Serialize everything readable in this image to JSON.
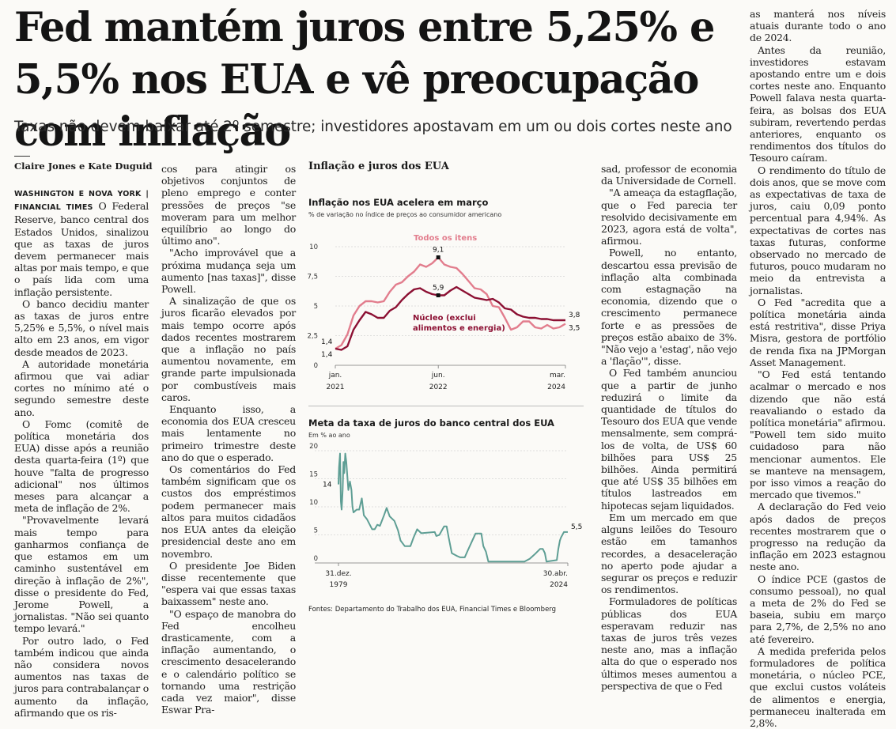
{
  "article": {
    "headline": "Fed mantém juros entre 5,25% e 5,5% nos EUA e vê preocupação com inflação",
    "subhead": "Taxas não devem baixar até 2º semestre; investidores apostavam em um ou dois cortes neste ano",
    "byline": "Claire Jones e Kate Duguid",
    "dateline": "WASHINGTON E NOVA YORK | FINANCIAL TIMES"
  },
  "col1": [
    "O Federal Reserve, banco central dos Estados Unidos, sinalizou que as taxas de juros devem permanecer mais altas por mais tempo, e que o país lida com uma inflação persistente.",
    "O banco decidiu manter as taxas de juros entre 5,25% e 5,5%, o nível mais alto em 23 anos, em vigor desde meados de 2023.",
    "A autoridade monetária afirmou que vai adiar cortes no mínimo até o segundo semestre deste ano.",
    "O Fomc (comitê de política monetária dos EUA) disse após a reunião desta quarta-feira (1º) que houve \"falta de progresso adicional\" nos últimos meses para alcançar a meta de inflação de 2%.",
    "\"Provavelmente levará mais tempo para ganharmos confiança de que estamos em um caminho sustentável em direção à inflação de 2%\", disse o presidente do Fed, Jerome Powell, a jornalistas. \"Não sei quanto tempo levará.\"",
    "Por outro lado, o Fed também indicou que ainda não considera novos aumentos nas taxas de juros para contrabalançar o aumento da inflação, afirmando que os ris-"
  ],
  "col2": [
    "cos para atingir os objetivos conjuntos de pleno emprego e conter pressões de preços \"se moveram para um melhor equilíbrio ao longo do último ano\".",
    "\"Acho improvável que a próxima mudança seja um aumento [nas taxas]\", disse Powell.",
    "A sinalização de que os juros ficarão elevados por mais tempo ocorre após dados recentes mostrarem que a inflação no país aumentou novamente, em grande parte impulsionada por combustíveis mais caros.",
    "Enquanto isso, a economia dos EUA cresceu mais lentamente no primeiro trimestre deste ano do que o esperado.",
    "Os comentários do Fed também significam que os custos dos empréstimos podem permanecer mais altos para muitos cidadãos nos EUA antes da eleição presidencial deste ano em novembro.",
    "O presidente Joe Biden disse recentemente que \"espera vai que essas taxas baixassem\" neste ano.",
    "\"O espaço de manobra do Fed encolheu drasticamente, com a inflação aumentando, o crescimento desacelerando e o calendário político se tornando uma restrição cada vez maior\", disse Eswar Pra-"
  ],
  "col3": [
    "sad, professor de economia da Universidade de Cornell.",
    "\"A ameaça da estagflação, que o Fed parecia ter resolvido decisivamente em 2023, agora está de volta\", afirmou.",
    "Powell, no entanto, descartou essa previsão de inflação alta combinada com estagnação na economia, dizendo que o crescimento permanece forte e as pressões de preços estão abaixo de 3%. \"Não vejo a 'estag', não vejo a 'flação'\", disse.",
    "O Fed também anunciou que a partir de junho reduzirá o limite da quantidade de títulos do Tesouro dos EUA que vende mensalmente, sem comprá-los de volta, de US$ 60 bilhões para US$ 25 bilhões. Ainda permitirá que até US$ 35 bilhões em títulos lastreados em hipotecas sejam liquidados.",
    "Em um mercado em que alguns leilões do Tesouro estão em tamanhos recordes, a desaceleração no aperto pode ajudar a segurar os preços e reduzir os rendimentos.",
    "Formuladores de políticas públicas dos EUA esperavam reduzir nas taxas de juros três vezes neste ano, mas a inflação alta do que o esperado nos últimos meses aumentou a perspectiva de que o Fed"
  ],
  "col4": [
    "as manterá nos níveis atuais durante todo o ano de 2024.",
    "Antes da reunião, investidores estavam apostando entre um e dois cortes neste ano. Enquanto Powell falava nesta quarta-feira, as bolsas dos EUA subiram, revertendo perdas anteriores, enquanto os rendimentos dos títulos do Tesouro caíram.",
    "O rendimento do título de dois anos, que se move com as expectativas de taxa de juros, caiu 0,09 ponto percentual para 4,94%. As expectativas de cortes nas taxas futuras, conforme observado no mercado de futuros, pouco mudaram no meio da entrevista a jornalistas.",
    "O Fed \"acredita que a política monetária ainda está restritiva\", disse Priya Misra, gestora de portfólio de renda fixa na JPMorgan Asset Management.",
    "\"O Fed está tentando acalmar o mercado e nos dizendo que não está reavaliando o estado da política monetária\" afirmou. \"Powell tem sido muito cuidadoso para não mencionar aumentos. Ele se manteve na mensagem, por isso vimos a reação do mercado que tivemos.\"",
    "A declaração do Fed veio após dados de preços recentes mostrarem que o progresso na redução da inflação em 2023 estagnou neste ano.",
    "O índice PCE (gastos de consumo pessoal), no qual a meta de 2% do Fed se baseia, subiu em março para 2,7%, de 2,5% no ano até fevereiro.",
    "A medida preferida pelos formuladores de política monetária, o núcleo PCE, que exclui custos voláteis de alimentos e energia, permaneceu inalterada em 2,8%."
  ],
  "graphic": {
    "title": "Inflação e juros dos EUA",
    "source": "Fontes: Departamento do Trabalho dos EUA, Financial Times e Bloomberg"
  },
  "chart_data": [
    {
      "type": "line",
      "title": "Inflação nos EUA acelera em março",
      "subtitle": "% de variação no índice de preços ao consumidor americano",
      "ylim": [
        0,
        10
      ],
      "yticks": [
        "10",
        "7,5",
        "5",
        "2,5",
        "0"
      ],
      "yticks_num": [
        10,
        7.5,
        5,
        2.5,
        0
      ],
      "xticks": [
        {
          "label": "jan.",
          "year": "2021",
          "t": 0
        },
        {
          "label": "jun.",
          "year": "2022",
          "t": 17
        },
        {
          "label": "mar.",
          "year": "2024",
          "t": 38
        }
      ],
      "t_max": 38,
      "series": [
        {
          "name": "Todos os itens",
          "color": "#e27d8d",
          "values": [
            1.4,
            1.7,
            2.6,
            4.2,
            5.0,
            5.4,
            5.4,
            5.3,
            5.4,
            6.2,
            6.8,
            7.0,
            7.5,
            7.9,
            8.5,
            8.3,
            8.6,
            9.1,
            8.5,
            8.3,
            8.2,
            7.7,
            7.1,
            6.5,
            6.4,
            6.0,
            5.0,
            4.9,
            4.0,
            3.0,
            3.2,
            3.7,
            3.7,
            3.2,
            3.1,
            3.4,
            3.1,
            3.2,
            3.5
          ],
          "end_label": "3,5",
          "peak_label": "9,1",
          "start_label": "1,4"
        },
        {
          "name": "Núcleo (exclui alimentos e energia)",
          "color": "#8c1033",
          "values": [
            1.4,
            1.3,
            1.6,
            3.0,
            3.8,
            4.5,
            4.3,
            4.0,
            4.0,
            4.6,
            4.9,
            5.5,
            6.0,
            6.4,
            6.5,
            6.2,
            6.0,
            5.9,
            5.9,
            6.3,
            6.6,
            6.3,
            6.0,
            5.7,
            5.6,
            5.5,
            5.6,
            5.3,
            4.8,
            4.7,
            4.3,
            4.1,
            4.0,
            4.0,
            3.9,
            3.9,
            3.8,
            3.8,
            3.8
          ],
          "end_label": "3,8",
          "peak_label": "5,9",
          "start_label": "1,4"
        }
      ],
      "legend": [
        "Todos os itens",
        "Núcleo (exclui",
        "alimentos e energia)"
      ]
    },
    {
      "type": "line",
      "title": "Meta da taxa de juros do banco central dos EUA",
      "subtitle": "Em % ao ano",
      "ylim": [
        0,
        20
      ],
      "yticks": [
        "20",
        "15",
        "10",
        "5",
        "0"
      ],
      "yticks_num": [
        20,
        15,
        10,
        5,
        0
      ],
      "xticks": [
        {
          "label": "31.dez.",
          "year": "1979",
          "t": 1979.99
        },
        {
          "label": "30.abr.",
          "year": "2024",
          "t": 2024.33
        }
      ],
      "series": [
        {
          "name": "Meta da taxa de juros",
          "color": "#5e9e94",
          "points": [
            [
              1979.99,
              14.0
            ],
            [
              1980.1,
              17.0
            ],
            [
              1980.3,
              19.5
            ],
            [
              1980.45,
              11.0
            ],
            [
              1980.6,
              9.5
            ],
            [
              1980.8,
              13.0
            ],
            [
              1980.95,
              18.0
            ],
            [
              1981.1,
              16.0
            ],
            [
              1981.3,
              19.5
            ],
            [
              1981.5,
              18.0
            ],
            [
              1981.7,
              15.5
            ],
            [
              1981.9,
              13.0
            ],
            [
              1982.2,
              14.5
            ],
            [
              1982.5,
              13.0
            ],
            [
              1982.7,
              10.0
            ],
            [
              1982.9,
              9.0
            ],
            [
              1983.5,
              9.5
            ],
            [
              1984.0,
              9.5
            ],
            [
              1984.5,
              11.5
            ],
            [
              1984.9,
              8.5
            ],
            [
              1985.5,
              7.8
            ],
            [
              1986.5,
              6.0
            ],
            [
              1987.0,
              6.0
            ],
            [
              1987.5,
              6.8
            ],
            [
              1988.0,
              6.6
            ],
            [
              1988.8,
              8.5
            ],
            [
              1989.3,
              9.8
            ],
            [
              1989.9,
              8.3
            ],
            [
              1990.8,
              7.5
            ],
            [
              1991.5,
              5.8
            ],
            [
              1992.0,
              4.0
            ],
            [
              1992.8,
              3.0
            ],
            [
              1993.9,
              3.0
            ],
            [
              1994.5,
              4.5
            ],
            [
              1995.2,
              6.0
            ],
            [
              1996.0,
              5.3
            ],
            [
              1998.6,
              5.5
            ],
            [
              1998.9,
              4.8
            ],
            [
              1999.5,
              5.0
            ],
            [
              2000.4,
              6.5
            ],
            [
              2000.9,
              6.5
            ],
            [
              2001.3,
              4.5
            ],
            [
              2001.9,
              1.75
            ],
            [
              2002.9,
              1.25
            ],
            [
              2003.5,
              1.0
            ],
            [
              2004.4,
              1.0
            ],
            [
              2005.0,
              2.25
            ],
            [
              2006.0,
              4.25
            ],
            [
              2006.5,
              5.25
            ],
            [
              2007.6,
              5.25
            ],
            [
              2008.0,
              3.0
            ],
            [
              2008.5,
              2.0
            ],
            [
              2008.96,
              0.25
            ],
            [
              2015.95,
              0.25
            ],
            [
              2016.96,
              0.75
            ],
            [
              2017.9,
              1.5
            ],
            [
              2018.96,
              2.5
            ],
            [
              2019.5,
              2.5
            ],
            [
              2019.9,
              1.75
            ],
            [
              2020.2,
              0.25
            ],
            [
              2022.2,
              0.5
            ],
            [
              2022.5,
              2.5
            ],
            [
              2022.8,
              4.0
            ],
            [
              2023.0,
              4.5
            ],
            [
              2023.58,
              5.5
            ],
            [
              2024.33,
              5.5
            ]
          ],
          "end_label": "5,5",
          "note_label": "14"
        }
      ]
    }
  ]
}
